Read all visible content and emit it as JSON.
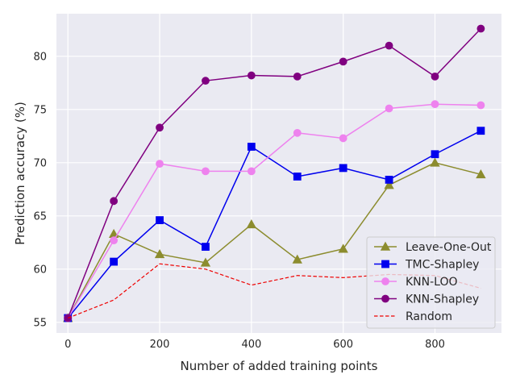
{
  "chart_data": {
    "type": "line",
    "title": "",
    "xlabel": "Number of added training points",
    "ylabel": "Prediction accuracy (%)",
    "xlim": [
      -25,
      945
    ],
    "ylim": [
      54,
      84
    ],
    "xticks": [
      0,
      200,
      400,
      600,
      800
    ],
    "yticks": [
      55,
      60,
      65,
      70,
      75,
      80
    ],
    "grid": true,
    "legend_position": "lower-right",
    "x": [
      0,
      100,
      200,
      300,
      400,
      500,
      600,
      700,
      800,
      900
    ],
    "series": [
      {
        "name": "Leave-One-Out",
        "color": "#8c8c2e",
        "marker": "triangle",
        "dash": "solid",
        "values": [
          55.4,
          63.3,
          61.4,
          60.6,
          64.2,
          60.9,
          61.9,
          67.9,
          70.0,
          68.9
        ]
      },
      {
        "name": "TMC-Shapley",
        "color": "#0000ee",
        "marker": "square",
        "dash": "solid",
        "values": [
          55.4,
          60.7,
          64.6,
          62.1,
          71.5,
          68.7,
          69.5,
          68.4,
          70.8,
          73.0
        ]
      },
      {
        "name": "KNN-LOO",
        "color": "#ee82ee",
        "marker": "circle",
        "dash": "solid",
        "values": [
          55.4,
          62.7,
          69.9,
          69.2,
          69.2,
          72.8,
          72.3,
          75.1,
          75.5,
          75.4
        ]
      },
      {
        "name": "KNN-Shapley",
        "color": "#800080",
        "marker": "circle",
        "dash": "solid",
        "values": [
          55.4,
          66.4,
          73.3,
          77.7,
          78.2,
          78.1,
          79.5,
          81.0,
          78.1,
          82.6
        ]
      },
      {
        "name": "Random",
        "color": "#ee0000",
        "marker": "none",
        "dash": "dashed",
        "values": [
          55.4,
          57.1,
          60.5,
          60.0,
          58.5,
          59.4,
          59.2,
          59.5,
          59.4,
          58.2
        ]
      }
    ]
  }
}
